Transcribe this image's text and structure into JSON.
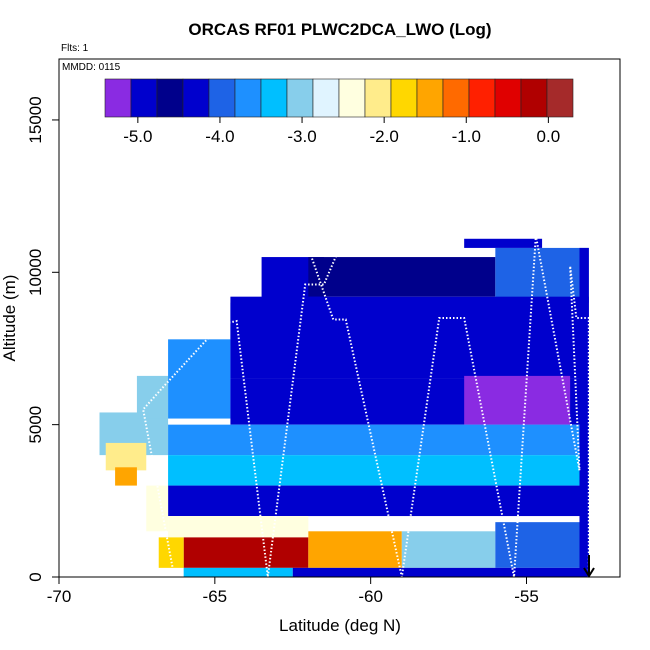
{
  "chart_data": {
    "type": "heatmap",
    "title": "ORCAS RF01 PLWC2DCA_LWO (Log)",
    "flights_note": "Flts: 1",
    "date_note": "MMDD: 0115",
    "xlabel": "Latitude (deg N)",
    "ylabel": "Altitude (m)",
    "xlim": [
      -70,
      -52
    ],
    "ylim": [
      0,
      17000
    ],
    "x_ticks": [
      -70,
      -65,
      -60,
      -55
    ],
    "x_tick_labels": [
      "-70",
      "-65",
      "-60",
      "-55"
    ],
    "y_ticks": [
      0,
      5000,
      10000,
      15000
    ],
    "y_tick_labels": [
      "0",
      "5000",
      "10000",
      "15000"
    ],
    "colorbar": {
      "range": [
        -5.4,
        0.3
      ],
      "ticks": [
        -5.0,
        -4.0,
        -3.0,
        -2.0,
        -1.0,
        0.0
      ],
      "tick_labels": [
        "-5.0",
        "-4.0",
        "-3.0",
        "-2.0",
        "-1.0",
        "0.0"
      ],
      "colors": [
        "#8a2be2",
        "#0000cd",
        "#00008b",
        "#0000cd",
        "#1e63e6",
        "#1e90ff",
        "#00bfff",
        "#87ceeb",
        "#e0f4ff",
        "#ffffe0",
        "#ffec8b",
        "#ffd700",
        "#ffa500",
        "#ff6a00",
        "#ff2000",
        "#e00000",
        "#b00000",
        "#a52a2a"
      ]
    },
    "cells": [
      {
        "lat": [
          -68.7,
          -66.5
        ],
        "alt": [
          4000,
          5400
        ],
        "v": -3.0
      },
      {
        "lat": [
          -68.5,
          -67.2
        ],
        "alt": [
          3500,
          4400
        ],
        "v": -2.0
      },
      {
        "lat": [
          -68.2,
          -67.5
        ],
        "alt": [
          3000,
          3600
        ],
        "v": -1.6
      },
      {
        "lat": [
          -67.5,
          -66.5
        ],
        "alt": [
          5200,
          6600
        ],
        "v": -3.1
      },
      {
        "lat": [
          -66.5,
          -64.5
        ],
        "alt": [
          5200,
          7800
        ],
        "v": -3.6
      },
      {
        "lat": [
          -64.5,
          -62.5
        ],
        "alt": [
          7600,
          9000
        ],
        "v": -3.6
      },
      {
        "lat": [
          -63.5,
          -61.5
        ],
        "alt": [
          9000,
          10500
        ],
        "v": -4.3
      },
      {
        "lat": [
          -62.0,
          -56.0
        ],
        "alt": [
          9200,
          10500
        ],
        "v": -4.6
      },
      {
        "lat": [
          -56.0,
          -53.0
        ],
        "alt": [
          9000,
          10800
        ],
        "v": -4.0
      },
      {
        "lat": [
          -57.0,
          -54.5
        ],
        "alt": [
          10800,
          11100
        ],
        "v": -4.9
      },
      {
        "lat": [
          -64.5,
          -53.0
        ],
        "alt": [
          6500,
          9200
        ],
        "v": -4.4
      },
      {
        "lat": [
          -64.5,
          -53.0
        ],
        "alt": [
          5000,
          6500
        ],
        "v": -4.8
      },
      {
        "lat": [
          -57.0,
          -53.6
        ],
        "alt": [
          5000,
          6600
        ],
        "v": -5.2
      },
      {
        "lat": [
          -66.5,
          -53.0
        ],
        "alt": [
          4000,
          5000
        ],
        "v": -3.8
      },
      {
        "lat": [
          -66.5,
          -53.0
        ],
        "alt": [
          3000,
          4000
        ],
        "v": -3.3
      },
      {
        "lat": [
          -66.5,
          -53.0
        ],
        "alt": [
          2000,
          3000
        ],
        "v": -4.2
      },
      {
        "lat": [
          -67.2,
          -66.5
        ],
        "alt": [
          1500,
          3000
        ],
        "v": -2.5
      },
      {
        "lat": [
          -66.5,
          -62.0
        ],
        "alt": [
          1300,
          2000
        ],
        "v": -2.5
      },
      {
        "lat": [
          -66.0,
          -62.0
        ],
        "alt": [
          300,
          1300
        ],
        "v": -0.3
      },
      {
        "lat": [
          -62.0,
          -59.0
        ],
        "alt": [
          300,
          1500
        ],
        "v": -1.6
      },
      {
        "lat": [
          -59.0,
          -56.0
        ],
        "alt": [
          300,
          1500
        ],
        "v": -2.9
      },
      {
        "lat": [
          -56.0,
          -53.0
        ],
        "alt": [
          300,
          1800
        ],
        "v": -4.0
      },
      {
        "lat": [
          -66.8,
          -66.0
        ],
        "alt": [
          300,
          1300
        ],
        "v": -1.8
      },
      {
        "lat": [
          -66.0,
          -62.5
        ],
        "alt": [
          0,
          300
        ],
        "v": -3.2
      },
      {
        "lat": [
          -62.5,
          -53.0
        ],
        "alt": [
          0,
          300
        ],
        "v": -4.3
      },
      {
        "lat": [
          -53.3,
          -53.0
        ],
        "alt": [
          0,
          10800
        ],
        "v": -5.0
      }
    ],
    "flight_track": [
      [
        -66.3,
        0
      ],
      [
        -67.3,
        5500
      ],
      [
        -66.6,
        6300
      ],
      [
        -64.8,
        8300
      ],
      [
        -64.3,
        8400
      ],
      [
        -63.3,
        0
      ],
      [
        -62.1,
        9600
      ],
      [
        -61.5,
        9600
      ],
      [
        -61.0,
        10800
      ],
      [
        -62.0,
        10800
      ],
      [
        -61.2,
        8450
      ],
      [
        -60.8,
        8450
      ],
      [
        -59.0,
        0
      ],
      [
        -57.8,
        8500
      ],
      [
        -57.0,
        8500
      ],
      [
        -55.4,
        0
      ],
      [
        -54.7,
        11200
      ],
      [
        -53.3,
        3500
      ],
      [
        -53.6,
        10200
      ],
      [
        -53.4,
        8500
      ],
      [
        -53.0,
        8500
      ],
      [
        -53.0,
        0
      ]
    ]
  }
}
